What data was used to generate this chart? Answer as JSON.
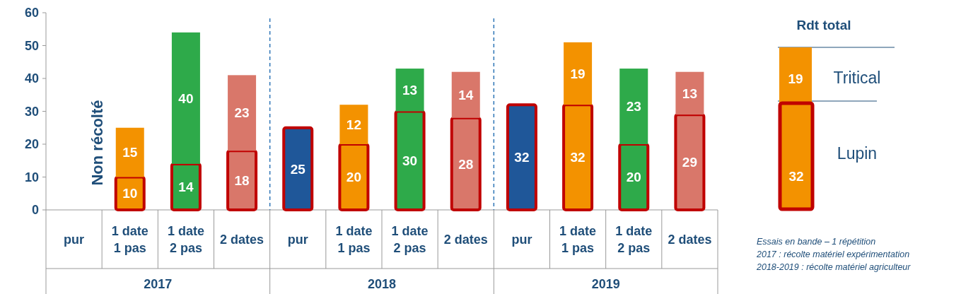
{
  "chart_data": {
    "type": "bar",
    "stacked": true,
    "data_labels": true,
    "legend": "right",
    "legend_title": "Rdt total",
    "categories": [
      "pur",
      "1 date 1 pas",
      "1 date 2 pas",
      "2 dates",
      "pur",
      "1 date 1 pas",
      "1 date 2 pas",
      "2 dates",
      "pur",
      "1 date 1 pas",
      "1 date 2 pas",
      "2 dates"
    ],
    "ylim": [
      0,
      60
    ],
    "yticks": [
      0,
      10,
      20,
      30,
      40,
      50,
      60
    ],
    "series": [
      {
        "name": "Lupin",
        "color": "#c00000",
        "colors": [
          null,
          "#f39200",
          "#2eaa4a",
          "#d9776a",
          "#1f5799",
          "#f39200",
          "#2eaa4a",
          "#d9776a",
          "#1f5799",
          "#f39200",
          "#2eaa4a",
          "#d9776a"
        ],
        "values": [
          null,
          10,
          14,
          18,
          25,
          20,
          30,
          28,
          32,
          32,
          20,
          29
        ]
      },
      {
        "name": "Tritical",
        "color": "#f39200",
        "colors": [
          null,
          "#f39200",
          "#2eaa4a",
          "#d9776a",
          null,
          "#f39200",
          "#2eaa4a",
          "#d9776a",
          null,
          "#f39200",
          "#2eaa4a",
          "#d9776a"
        ],
        "values": [
          null,
          15,
          40,
          23,
          null,
          12,
          13,
          14,
          null,
          19,
          23,
          13
        ]
      }
    ],
    "annotations": [
      "2017",
      "2018",
      "2019",
      "Non récolté",
      "19",
      "32",
      "Essais en bande – 1 répétition",
      "2017 : récolte matériel expérimentation",
      "2018-2019 : récolte matériel agriculteur"
    ]
  }
}
